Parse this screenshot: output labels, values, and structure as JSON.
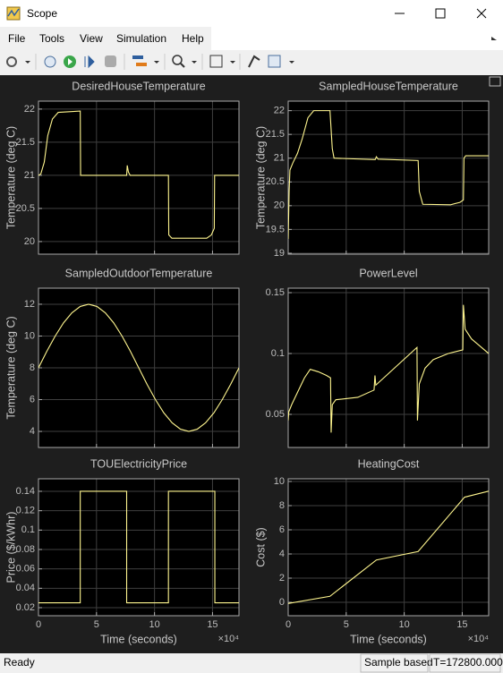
{
  "window": {
    "title": "Scope"
  },
  "menu": [
    "File",
    "Tools",
    "View",
    "Simulation",
    "Help"
  ],
  "status_bar": {
    "status": "Ready",
    "mode": "Sample based",
    "time": "T=172800.000"
  },
  "chart_data": [
    {
      "type": "line",
      "title": "DesiredHouseTemperature",
      "ylabel": "Temperature (deg C)",
      "grid": true,
      "color": "#fff68f",
      "xlim": [
        0,
        172800
      ],
      "ylim": [
        19.81,
        22.12
      ],
      "xticks": [
        0,
        50000,
        100000,
        150000
      ],
      "yticks": [
        20,
        20.5,
        21,
        21.5,
        22
      ],
      "x": [
        0,
        2000,
        5000,
        8000,
        12000,
        17000,
        36000,
        36300,
        76000,
        76500,
        77500,
        79000,
        112000,
        112300,
        115000,
        145000,
        149000,
        151500,
        151800,
        172800
      ],
      "values": [
        21,
        21.02,
        21.2,
        21.6,
        21.85,
        21.95,
        21.97,
        21,
        21,
        21.15,
        21.05,
        21,
        21,
        20.1,
        20.05,
        20.05,
        20.1,
        20.2,
        21,
        21
      ]
    },
    {
      "type": "line",
      "title": "SampledHouseTemperature",
      "ylabel": "Temperature (deg C)",
      "grid": true,
      "color": "#fff68f",
      "xlim": [
        0,
        172800
      ],
      "ylim": [
        18.98,
        22.2
      ],
      "xticks": [
        0,
        50000,
        100000,
        150000
      ],
      "yticks": [
        19,
        19.5,
        20,
        20.5,
        21,
        21.5,
        22
      ],
      "x": [
        0,
        800,
        1500,
        4000,
        8000,
        12000,
        17000,
        22000,
        36000,
        38000,
        39500,
        75000,
        76000,
        77500,
        112000,
        113000,
        116000,
        140000,
        148000,
        151000,
        151500,
        153000,
        172800
      ],
      "values": [
        19.3,
        20.3,
        20.75,
        20.9,
        21.1,
        21.4,
        21.85,
        22,
        22,
        21.2,
        21,
        20.97,
        21.03,
        20.98,
        20.95,
        20.3,
        20.03,
        20.02,
        20.07,
        20.12,
        21,
        21.05,
        21.05
      ]
    },
    {
      "type": "line",
      "title": "SampledOutdoorTemperature",
      "ylabel": "Temperature (deg C)",
      "grid": true,
      "color": "#fff68f",
      "xlim": [
        0,
        172800
      ],
      "ylim": [
        2.99,
        13.01
      ],
      "xticks": [
        0,
        50000,
        100000,
        150000
      ],
      "yticks": [
        4,
        6,
        8,
        10,
        12
      ],
      "x": [
        0,
        7200,
        14400,
        21600,
        28800,
        36000,
        43200,
        50400,
        57600,
        64800,
        72000,
        79200,
        86400,
        93600,
        100800,
        108000,
        115200,
        122400,
        129600,
        136800,
        144000,
        151200,
        158400,
        165600,
        172800
      ],
      "values": [
        8,
        9.04,
        10,
        10.83,
        11.46,
        11.86,
        12,
        11.86,
        11.46,
        10.83,
        10,
        9.04,
        8,
        6.96,
        6,
        5.17,
        4.54,
        4.14,
        4,
        4.14,
        4.54,
        5.17,
        6,
        6.96,
        8
      ]
    },
    {
      "type": "line",
      "title": "PowerLevel",
      "grid": true,
      "color": "#fff68f",
      "xlim": [
        0,
        172800
      ],
      "ylim": [
        0.0228,
        0.1537
      ],
      "xticks": [
        0,
        50000,
        100000,
        150000
      ],
      "yticks": [
        0.05,
        0.1,
        0.15
      ],
      "x": [
        0,
        500,
        3000,
        8000,
        14000,
        19000,
        26000,
        33000,
        36500,
        37000,
        38000,
        41000,
        60000,
        74000,
        74800,
        75500,
        111000,
        111400,
        113000,
        118000,
        125000,
        138000,
        150500,
        151000,
        152500,
        158000,
        172800
      ],
      "values": [
        0.045,
        0.052,
        0.058,
        0.068,
        0.08,
        0.087,
        0.085,
        0.082,
        0.08,
        0.035,
        0.058,
        0.062,
        0.064,
        0.07,
        0.082,
        0.074,
        0.105,
        0.045,
        0.075,
        0.088,
        0.095,
        0.1,
        0.103,
        0.14,
        0.12,
        0.112,
        0.1
      ]
    },
    {
      "type": "line",
      "title": "TOUElectricityPrice",
      "ylabel": "Price ($/kWhr)",
      "xlabel": "Time (seconds)",
      "x_multiplier": "×10⁴",
      "grid": true,
      "color": "#fff68f",
      "xlim": [
        0,
        172800
      ],
      "ylim": [
        0.0117,
        0.1529
      ],
      "xticks": [
        0,
        {
          "value": 50000,
          "label": "5"
        },
        {
          "value": 100000,
          "label": "10"
        },
        {
          "value": 150000,
          "label": "15"
        }
      ],
      "yticks": [
        0.02,
        0.04,
        0.06,
        0.08,
        0.1,
        0.12,
        0.14
      ],
      "x": [
        0,
        36000,
        36000,
        76000,
        76000,
        112000,
        112000,
        152000,
        152000,
        172800
      ],
      "values": [
        0.025,
        0.025,
        0.14,
        0.14,
        0.025,
        0.025,
        0.14,
        0.14,
        0.025,
        0.025
      ]
    },
    {
      "type": "line",
      "title": "HeatingCost",
      "ylabel": "Cost ($)",
      "xlabel": "Time (seconds)",
      "x_multiplier": "×10⁴",
      "grid": true,
      "color": "#fff68f",
      "xlim": [
        0,
        172800
      ],
      "ylim": [
        -1.11,
        10.22
      ],
      "xticks": [
        0,
        {
          "value": 50000,
          "label": "5"
        },
        {
          "value": 100000,
          "label": "10"
        },
        {
          "value": 150000,
          "label": "15"
        }
      ],
      "yticks": [
        0,
        2,
        4,
        6,
        8,
        10
      ],
      "x": [
        0,
        36000,
        76000,
        112000,
        152000,
        172800
      ],
      "values": [
        -0.1,
        0.5,
        3.5,
        4.2,
        8.7,
        9.2
      ]
    }
  ]
}
